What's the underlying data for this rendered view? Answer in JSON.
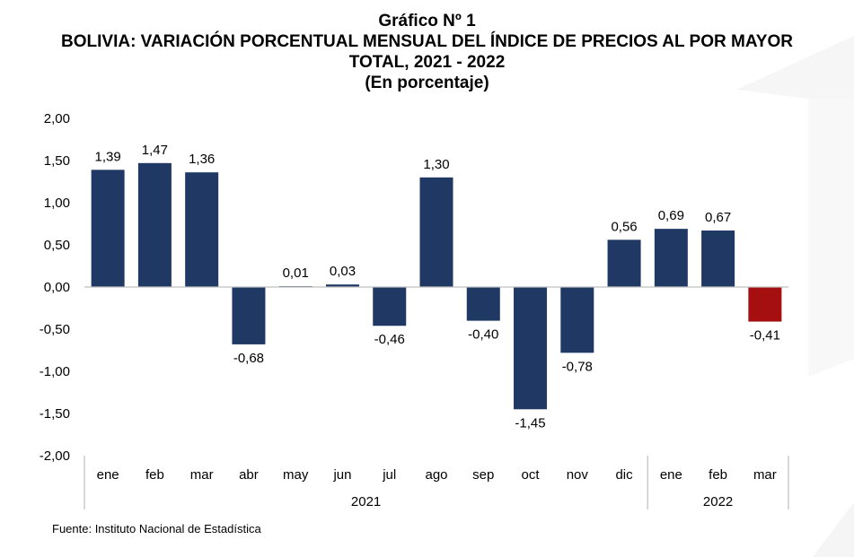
{
  "header": {
    "line1": "Gráfico Nº 1",
    "line2": "BOLIVIA: VARIACIÓN PORCENTUAL MENSUAL DEL ÍNDICE DE PRECIOS AL POR MAYOR",
    "line3": "TOTAL, 2021 - 2022",
    "line4": "(En porcentaje)"
  },
  "source": "Fuente: Instituto Nacional de Estadística",
  "colors": {
    "bar": "#1f3864",
    "highlight": "#a50f0f",
    "axis": "#bfbfbf",
    "text": "#000000"
  },
  "chart_data": {
    "type": "bar",
    "title": "BOLIVIA: VARIACIÓN PORCENTUAL MENSUAL DEL ÍNDICE DE PRECIOS AL POR MAYOR TOTAL, 2021 - 2022",
    "categories": [
      "ene",
      "feb",
      "mar",
      "abr",
      "may",
      "jun",
      "jul",
      "ago",
      "sep",
      "oct",
      "nov",
      "dic",
      "ene",
      "feb",
      "mar"
    ],
    "values": [
      1.39,
      1.47,
      1.36,
      -0.68,
      0.01,
      0.03,
      -0.46,
      1.3,
      -0.4,
      -1.45,
      -0.78,
      0.56,
      0.69,
      0.67,
      -0.41
    ],
    "value_labels": [
      "1,39",
      "1,47",
      "1,36",
      "-0,68",
      "0,01",
      "0,03",
      "-0,46",
      "1,30",
      "-0,40",
      "-1,45",
      "-0,78",
      "0,56",
      "0,69",
      "0,67",
      "-0,41"
    ],
    "highlight_index": 14,
    "groups": [
      {
        "label": "2021",
        "count": 12
      },
      {
        "label": "2022",
        "count": 3
      }
    ],
    "ylim": [
      -2.0,
      2.0
    ],
    "yticks": [
      2.0,
      1.5,
      1.0,
      0.5,
      0.0,
      -0.5,
      -1.0,
      -1.5,
      -2.0
    ],
    "ytick_labels": [
      "2,00",
      "1,50",
      "1,00",
      "0,50",
      "0,00",
      "-0,50",
      "-1,00",
      "-1,50",
      "-2,00"
    ],
    "grid": false,
    "legend": "none"
  }
}
